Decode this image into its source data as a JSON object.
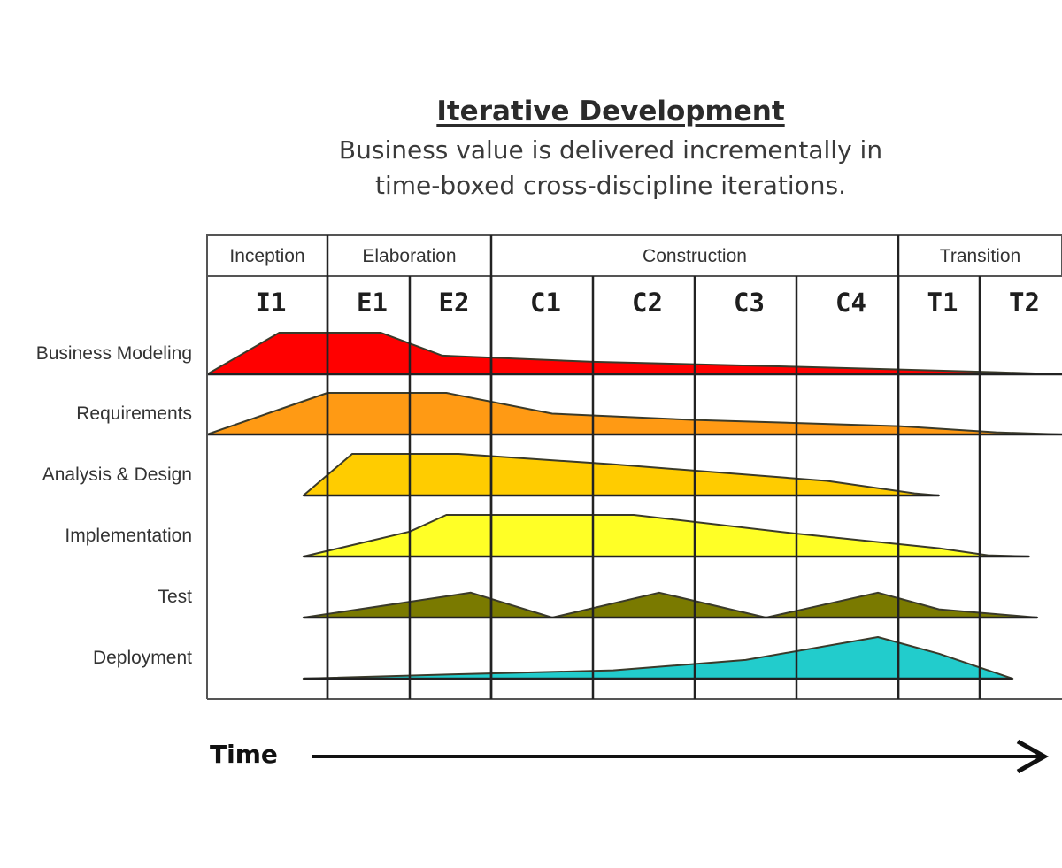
{
  "title": "Iterative Development",
  "subtitle_lines": [
    "Business value is delivered incrementally in",
    "time-boxed cross-discipline iterations."
  ],
  "phases": [
    {
      "label": "Inception",
      "iterations": 1
    },
    {
      "label": "Elaboration",
      "iterations": 2
    },
    {
      "label": "Construction",
      "iterations": 4
    },
    {
      "label": "Transition",
      "iterations": 2
    }
  ],
  "iterations": [
    "I1",
    "E1",
    "E2",
    "C1",
    "C2",
    "C3",
    "C4",
    "T1",
    "T2"
  ],
  "disciplines": [
    {
      "label": "Business Modeling",
      "color": "#ff0000",
      "profile": [
        [
          0,
          0
        ],
        [
          0.6,
          1
        ],
        [
          1.65,
          1
        ],
        [
          2.4,
          0.45
        ],
        [
          4,
          0.3
        ],
        [
          6,
          0.18
        ],
        [
          8.2,
          0.05
        ],
        [
          9,
          0
        ]
      ]
    },
    {
      "label": "Requirements",
      "color": "#ff9a14",
      "profile": [
        [
          0,
          0
        ],
        [
          1,
          1
        ],
        [
          2.45,
          1
        ],
        [
          3.6,
          0.5
        ],
        [
          5,
          0.35
        ],
        [
          7,
          0.2
        ],
        [
          8.2,
          0.05
        ],
        [
          9,
          0
        ]
      ]
    },
    {
      "label": "Analysis & Design",
      "color": "#ffcc00",
      "profile": [
        [
          0.8,
          0
        ],
        [
          1.3,
          1
        ],
        [
          2.6,
          1
        ],
        [
          4.2,
          0.75
        ],
        [
          6.3,
          0.35
        ],
        [
          7.2,
          0.05
        ],
        [
          7.5,
          0
        ]
      ]
    },
    {
      "label": "Implementation",
      "color": "#ffff26",
      "profile": [
        [
          0.8,
          0
        ],
        [
          2,
          0.6
        ],
        [
          2.45,
          1
        ],
        [
          4.4,
          1
        ],
        [
          6,
          0.55
        ],
        [
          7.5,
          0.2
        ],
        [
          8.1,
          0.03
        ],
        [
          8.6,
          0
        ]
      ]
    },
    {
      "label": "Test",
      "color": "#7a7a00",
      "profile": [
        [
          0.8,
          0
        ],
        [
          2.75,
          0.6
        ],
        [
          3.6,
          0
        ],
        [
          4.65,
          0.6
        ],
        [
          5.7,
          0
        ],
        [
          6.8,
          0.6
        ],
        [
          7.5,
          0.2
        ],
        [
          8.7,
          0
        ]
      ]
    },
    {
      "label": "Deployment",
      "color": "#22cccc",
      "profile": [
        [
          0.8,
          0
        ],
        [
          2.5,
          0.1
        ],
        [
          4.2,
          0.2
        ],
        [
          5.5,
          0.45
        ],
        [
          6.8,
          1
        ],
        [
          7.5,
          0.6
        ],
        [
          8.4,
          0
        ]
      ]
    }
  ],
  "time_label": "Time"
}
